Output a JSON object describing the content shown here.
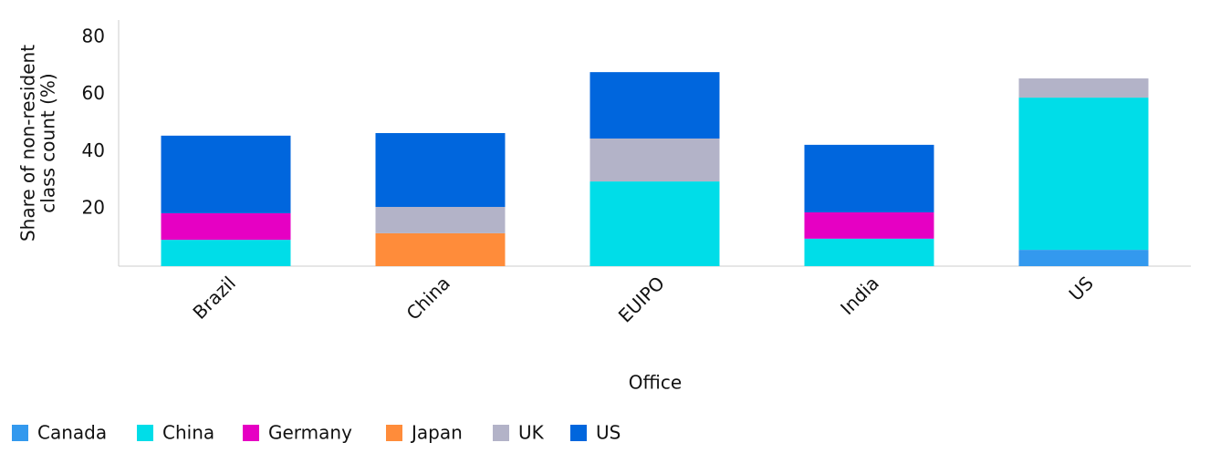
{
  "chart_data": {
    "type": "stacked_bar",
    "y_label_lines": [
      "Share of non-resident",
      "class count (%)"
    ],
    "x_label": "Office",
    "categories": [
      "Brazil",
      "China",
      "EUIPO",
      "India",
      "US"
    ],
    "series": [
      {
        "name": "Canada",
        "color": "#3399ee",
        "values": [
          null,
          null,
          null,
          null,
          5.7
        ]
      },
      {
        "name": "China",
        "color": "#00dde8",
        "values": [
          9.2,
          null,
          29.6,
          9.6,
          53.2
        ]
      },
      {
        "name": "Germany",
        "color": "#e600c3",
        "values": [
          9.3,
          null,
          null,
          9.2,
          null
        ]
      },
      {
        "name": "Japan",
        "color": "#ff8c3a",
        "values": [
          null,
          11.5,
          null,
          null,
          null
        ]
      },
      {
        "name": "UK",
        "color": "#b3b3c8",
        "values": [
          null,
          9.2,
          15,
          null,
          6.7
        ]
      },
      {
        "name": "US",
        "color": "#0066dd",
        "values": [
          27.1,
          25.8,
          23.2,
          23.6,
          null
        ]
      }
    ],
    "ylim": [
      0,
      86
    ],
    "yticks": [
      20,
      40,
      60,
      80
    ],
    "grid": false
  }
}
